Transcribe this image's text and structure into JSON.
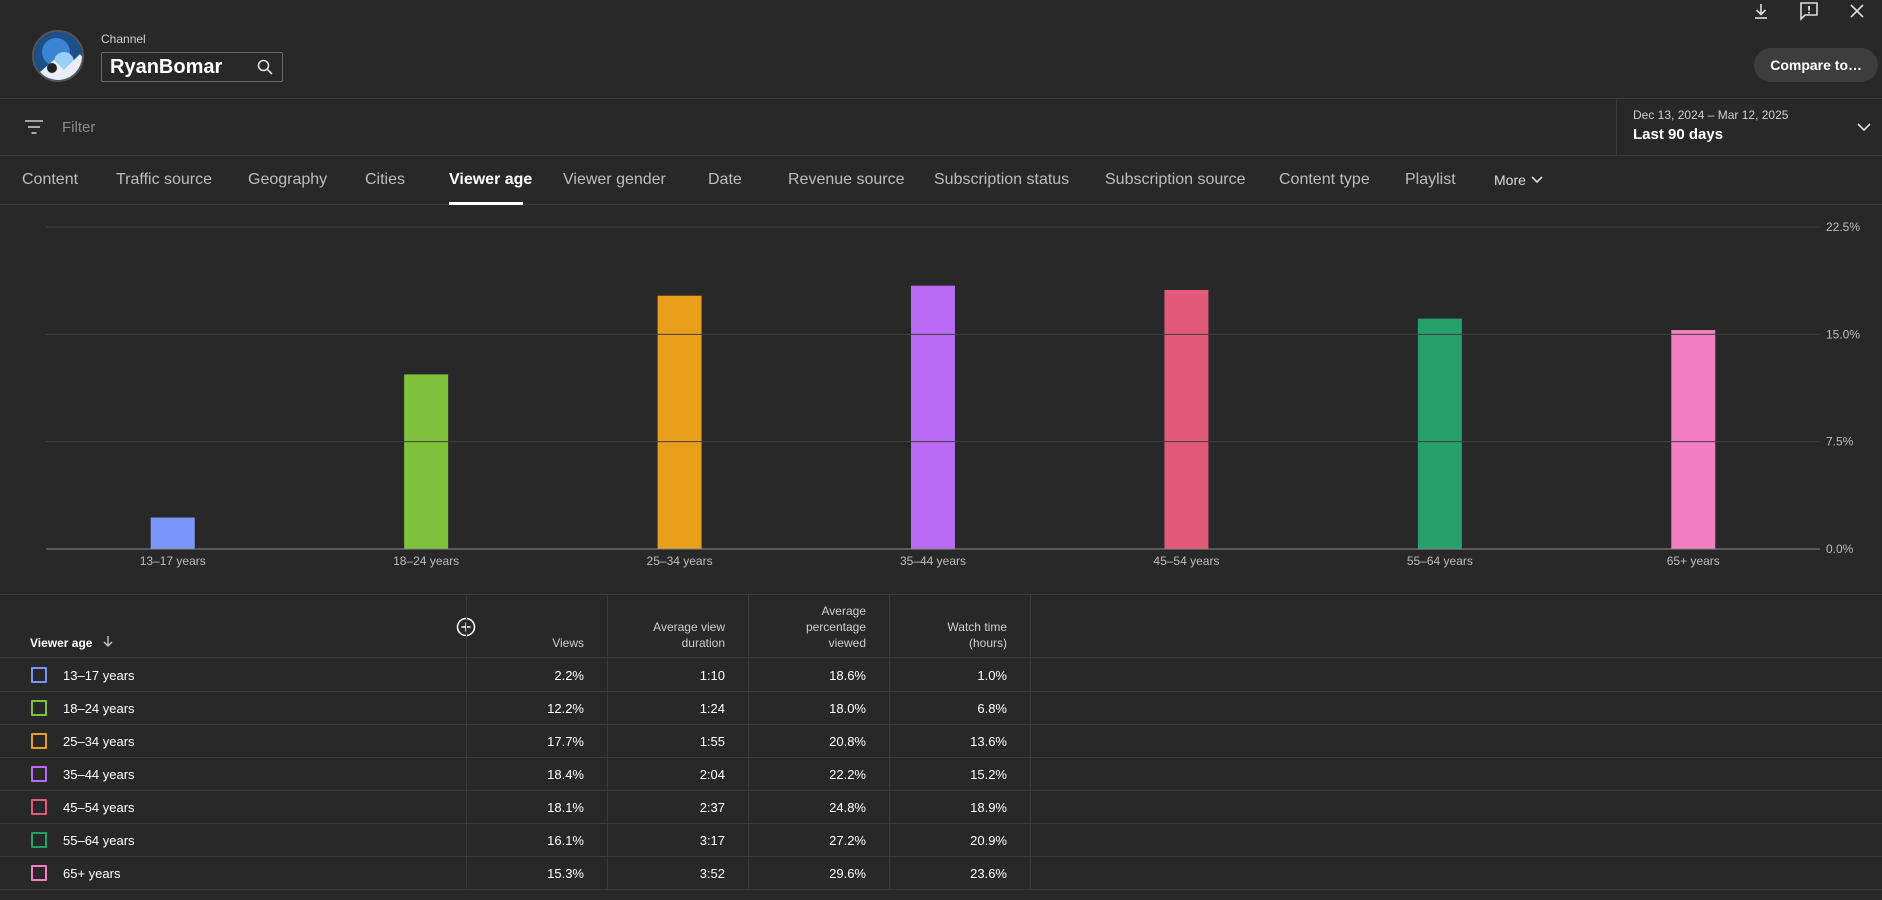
{
  "header": {
    "channel_label": "Channel",
    "channel_name": "RyanBomar",
    "compare_label": "Compare to…"
  },
  "filter": {
    "placeholder": "Filter"
  },
  "date_picker": {
    "range": "Dec 13, 2024 – Mar 12, 2025",
    "period": "Last 90 days"
  },
  "tabs": [
    {
      "label": "Content"
    },
    {
      "label": "Traffic source"
    },
    {
      "label": "Geography"
    },
    {
      "label": "Cities"
    },
    {
      "label": "Viewer age"
    },
    {
      "label": "Viewer gender"
    },
    {
      "label": "Date"
    },
    {
      "label": "Revenue source"
    },
    {
      "label": "Subscription status"
    },
    {
      "label": "Subscription source"
    },
    {
      "label": "Content type"
    },
    {
      "label": "Playlist"
    },
    {
      "label": "More"
    }
  ],
  "active_tab": "Viewer age",
  "chart_data": {
    "type": "bar",
    "categories": [
      "13–17 years",
      "18–24 years",
      "25–34 years",
      "35–44 years",
      "45–54 years",
      "55–64 years",
      "65+ years"
    ],
    "values": [
      2.2,
      12.2,
      17.7,
      18.4,
      18.1,
      16.1,
      15.3
    ],
    "colors": [
      "#7b96fb",
      "#7ec13b",
      "#e99e1c",
      "#b86bf2",
      "#e25a7a",
      "#25a06b",
      "#f27fc3"
    ],
    "ylim": [
      0,
      22.5
    ],
    "yticks": [
      "0.0%",
      "7.5%",
      "15.0%",
      "22.5%"
    ],
    "grid": true
  },
  "table": {
    "columns": {
      "first": "Viewer age",
      "views": "Views",
      "avg_duration": [
        "Average view",
        "duration"
      ],
      "avg_pct": [
        "Average",
        "percentage",
        "viewed"
      ],
      "watch_time": [
        "Watch time",
        "(hours)"
      ]
    },
    "rows": [
      {
        "label": "13–17 years",
        "views": "2.2%",
        "avg_duration": "1:10",
        "avg_pct": "18.6%",
        "watch_time": "1.0%"
      },
      {
        "label": "18–24 years",
        "views": "12.2%",
        "avg_duration": "1:24",
        "avg_pct": "18.0%",
        "watch_time": "6.8%"
      },
      {
        "label": "25–34 years",
        "views": "17.7%",
        "avg_duration": "1:55",
        "avg_pct": "20.8%",
        "watch_time": "13.6%"
      },
      {
        "label": "35–44 years",
        "views": "18.4%",
        "avg_duration": "2:04",
        "avg_pct": "22.2%",
        "watch_time": "15.2%"
      },
      {
        "label": "45–54 years",
        "views": "18.1%",
        "avg_duration": "2:37",
        "avg_pct": "24.8%",
        "watch_time": "18.9%"
      },
      {
        "label": "55–64 years",
        "views": "16.1%",
        "avg_duration": "3:17",
        "avg_pct": "27.2%",
        "watch_time": "20.9%"
      },
      {
        "label": "65+ years",
        "views": "15.3%",
        "avg_duration": "3:52",
        "avg_pct": "29.6%",
        "watch_time": "23.6%"
      }
    ]
  },
  "icons": {
    "download": "download-icon",
    "feedback": "feedback-icon",
    "close": "close-icon",
    "search": "search-icon",
    "filter": "filter-icon",
    "chevron": "chevron-down-icon",
    "add": "add-metric-icon",
    "sort": "sort-arrow-down-icon"
  }
}
